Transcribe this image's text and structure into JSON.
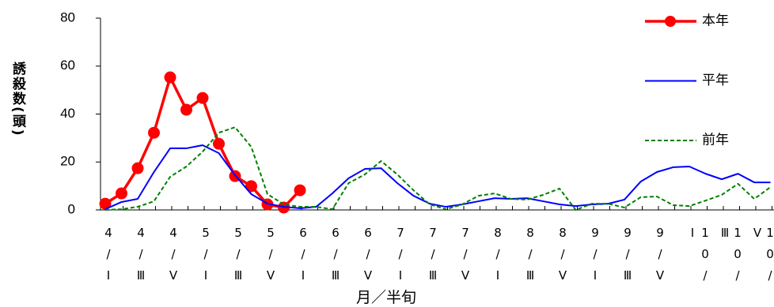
{
  "chart_data": {
    "type": "line",
    "y_label": "誘殺数(頭)",
    "x_label": "月／半旬",
    "categories": [
      "4/Ⅰ",
      null,
      "4/Ⅲ",
      null,
      "4/Ⅴ",
      null,
      "5/Ⅰ",
      null,
      "5/Ⅲ",
      null,
      "5/Ⅴ",
      null,
      "6/Ⅰ",
      null,
      "6/Ⅲ",
      null,
      "6/Ⅴ",
      null,
      "7/Ⅰ",
      null,
      "7/Ⅲ",
      null,
      "7/Ⅴ",
      null,
      "8/Ⅰ",
      null,
      "8/Ⅲ",
      null,
      "8/Ⅴ",
      null,
      "9/Ⅰ",
      null,
      "9/Ⅲ",
      null,
      "9/Ⅴ",
      null,
      "10/Ⅰ",
      null,
      "10/Ⅲ",
      null,
      "10/Ⅴ",
      null
    ],
    "series": [
      {
        "name": "本年",
        "color": "#ff0000",
        "line_style": "solid",
        "marker": "circle",
        "values": [
          2.6,
          6.9,
          17.4,
          32.2,
          55.3,
          41.8,
          46.7,
          27.6,
          14.1,
          9.9,
          2.3,
          1,
          8.2,
          null,
          null,
          null,
          null,
          null,
          null,
          null,
          null,
          null,
          null,
          null,
          null,
          null,
          null,
          null,
          null,
          null,
          null,
          null,
          null,
          null,
          null,
          null,
          null,
          null,
          null,
          null,
          null,
          null
        ]
      },
      {
        "name": "平年",
        "color": "#0000ff",
        "line_style": "solid",
        "values": [
          0.3,
          3.3,
          4.6,
          15.8,
          25.7,
          25.7,
          27,
          23.7,
          14.5,
          6.6,
          2.6,
          1.3,
          0.7,
          1.3,
          6.9,
          13.2,
          17.1,
          17.4,
          11.2,
          5.9,
          2.6,
          1.3,
          2.3,
          3.6,
          4.9,
          4.6,
          4.9,
          3.6,
          2.3,
          1.6,
          2.3,
          2.6,
          4.3,
          11.8,
          15.8,
          17.8,
          18.1,
          15.1,
          12.8,
          15.1,
          11.5,
          11.5
        ]
      },
      {
        "name": "前年",
        "color": "#008000",
        "line_style": "dashed",
        "values": [
          0,
          0.3,
          1.3,
          3.6,
          13.8,
          18.1,
          24.3,
          32.2,
          34.5,
          26.3,
          6.6,
          2.3,
          1.3,
          1.3,
          0.3,
          11.2,
          14.8,
          20.4,
          14.8,
          8.2,
          2.3,
          0.3,
          2.3,
          5.9,
          6.9,
          4.6,
          4.3,
          6.3,
          8.9,
          0,
          2.6,
          2.6,
          1,
          5.3,
          5.6,
          2,
          1.6,
          3.9,
          6.3,
          10.9,
          4.6,
          9.5
        ]
      }
    ],
    "ylim": [
      0,
      80
    ],
    "yticks": [
      0,
      20,
      40,
      60,
      80
    ],
    "legend": "right"
  }
}
